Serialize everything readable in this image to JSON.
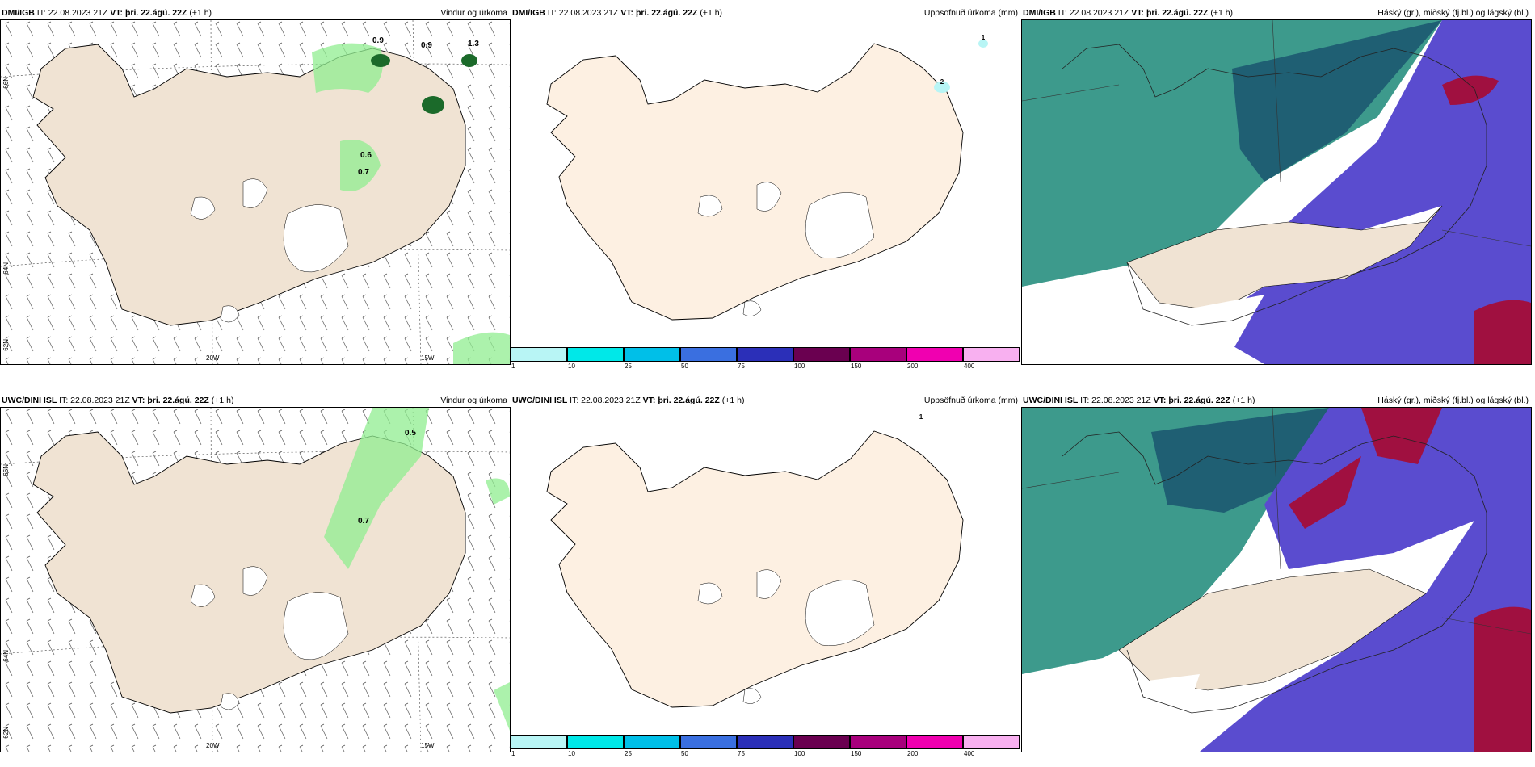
{
  "panels": [
    {
      "model": "DMI/IGB",
      "it": "IT: 22.08.2023 21Z",
      "vt_label": "VT:",
      "vt": "þri. 22.ágú. 22Z",
      "lead": "(+1 h)",
      "product": "Vindur og úrkoma"
    },
    {
      "model": "DMI/IGB",
      "it": "IT: 22.08.2023 21Z",
      "vt_label": "VT:",
      "vt": "þri. 22.ágú. 22Z",
      "lead": "(+1 h)",
      "product": "Uppsöfnuð úrkoma (mm)"
    },
    {
      "model": "DMI/IGB",
      "it": "IT: 22.08.2023 21Z",
      "vt_label": "VT:",
      "vt": "þri. 22.ágú. 22Z",
      "lead": "(+1 h)",
      "product": "Háský (gr.), miðský (fj.bl.) og lágský (bl.)"
    },
    {
      "model": "UWC/DINI ISL",
      "it": "IT: 22.08.2023 21Z",
      "vt_label": "VT:",
      "vt": "þri. 22.ágú. 22Z",
      "lead": "(+1 h)",
      "product": "Vindur og úrkoma"
    },
    {
      "model": "UWC/DINI ISL",
      "it": "IT: 22.08.2023 21Z",
      "vt_label": "VT:",
      "vt": "þri. 22.ágú. 22Z",
      "lead": "(+1 h)",
      "product": "Uppsöfnuð úrkoma (mm)"
    },
    {
      "model": "UWC/DINI ISL",
      "it": "IT: 22.08.2023 21Z",
      "vt_label": "VT:",
      "vt": "þri. 22.ágú. 22Z",
      "lead": "(+1 h)",
      "product": "Háský (gr.), miðský (fj.bl.) og lágský (bl.)"
    }
  ],
  "grid_labels": {
    "lat66": "66N",
    "lat64": "64N",
    "lat62": "62N",
    "lon20": "20W",
    "lon15": "15W"
  },
  "precip_values_top": [
    "0.9",
    "0.9",
    "1.3",
    "0.6",
    "0.7"
  ],
  "precip_values_bottom": [
    "0.5",
    "0.7"
  ],
  "accum_marks_top": [
    "1",
    "2"
  ],
  "accum_marks_bottom": [
    "1"
  ],
  "colorbar": {
    "ticks": [
      "1",
      "10",
      "25",
      "50",
      "75",
      "100",
      "150",
      "200",
      "400"
    ],
    "colors": [
      "#b8f5f5",
      "#00e8e8",
      "#00bfe8",
      "#3a6fe0",
      "#2b2fb8",
      "#6a0050",
      "#a8007c",
      "#f000b0",
      "#f8b0f0"
    ]
  },
  "colors": {
    "land": "#f0e3d3",
    "land_clean": "#fdf0e2",
    "ice": "#ffffff",
    "rain": "#90ee90",
    "high_cloud": "#3d9a8c",
    "mid_cloud": "#1f5f73",
    "low_cloud": "#5a4ccf",
    "dark_cloud": "#a01040"
  }
}
